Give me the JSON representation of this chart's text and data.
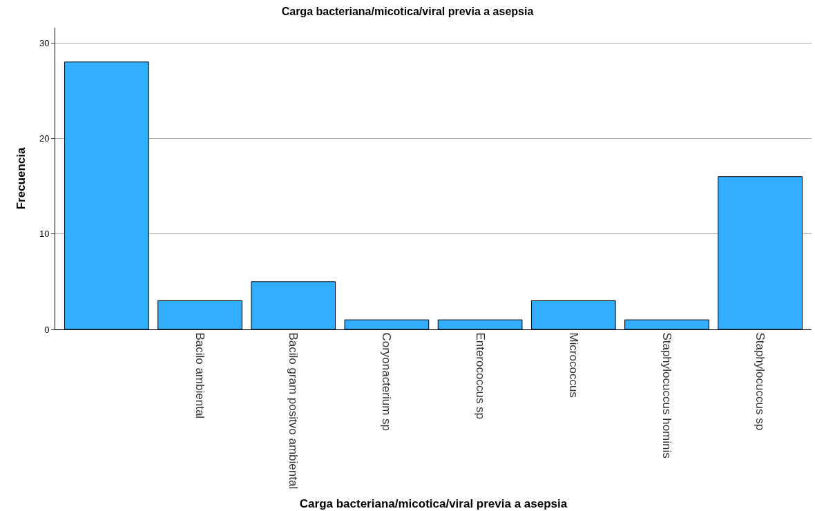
{
  "chart_data": {
    "type": "bar",
    "title": "Carga bacteriana/micotica/viral previa a asepsia",
    "xlabel": "Carga bacteriana/micotica/viral previa a asepsia",
    "ylabel": "Frecuencia",
    "categories": [
      null,
      "Bacilo ambiental",
      "Bacilo gram positvo ambiental",
      "Coryonacterium sp",
      "Enterococcus sp",
      "Micrococcus",
      "Staphylocuccus hominis",
      "Staphylocuccus sp"
    ],
    "values": [
      28,
      3,
      5,
      1,
      1,
      3,
      1,
      16
    ],
    "color": "#33adff",
    "ylim": [
      0,
      31.6
    ],
    "yticks": [
      0,
      10,
      20,
      30
    ],
    "grid": "y"
  }
}
